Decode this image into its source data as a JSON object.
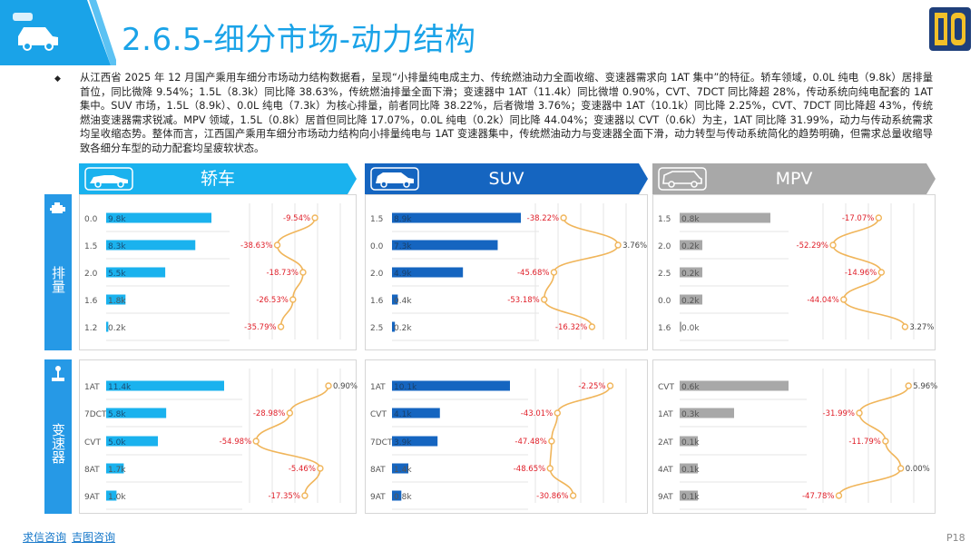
{
  "header": {
    "title": "2.6.5-细分市场-动力结构"
  },
  "summary": {
    "bullet": "◆",
    "text": "从江西省 2025 年 12 月国产乘用车细分市场动力结构数据看，呈现“小排量纯电成主力、传统燃油动力全面收缩、变速器需求向 1AT 集中”的特征。轿车领域，0.0L 纯电（9.8k）居排量首位，同比微降 9.54%；1.5L（8.3k）同比降 38.63%，传统燃油排量全面下滑；变速器中 1AT（11.4k）同比微增 0.90%，CVT、7DCT 同比降超 28%，传动系统向纯电配套的 1AT 集中。SUV 市场，1.5L（8.9k）、0.0L 纯电（7.3k）为核心排量，前者同比降 38.22%，后者微增 3.76%；变速器中 1AT（10.1k）同比降 2.25%，CVT、7DCT 同比降超 43%，传统燃油变速器需求锐减。MPV 领域，1.5L（0.8k）居首但同比降 17.07%，0.0L 纯电（0.2k）同比降 44.04%；变速器以 CVT（0.6k）为主，1AT 同比降 31.99%，动力与传动系统需求均呈收缩态势。整体而言，江西国产乘用车细分市场动力结构向小排量纯电与 1AT 变速器集中，传统燃油动力与变速器全面下滑，动力转型与传动系统简化的趋势明确，但需求总量收缩导致各细分车型的动力配套均呈疲软状态。"
  },
  "columns": [
    {
      "label": "轿车",
      "color": "#1ab2ee"
    },
    {
      "label": "SUV",
      "color": "#1565c0"
    },
    {
      "label": "MPV",
      "color": "#a8a8a8"
    }
  ],
  "rows": [
    {
      "label": "排量",
      "icon": "engine-icon"
    },
    {
      "label": "变速器",
      "icon": "gear-shift-icon"
    }
  ],
  "footer": {
    "link1": "求信咨询",
    "link2": "吉图咨询",
    "page": "P18"
  },
  "chart_data": [
    {
      "type": "bar",
      "segment": "轿车",
      "dimension": "排量",
      "categories": [
        "0.0",
        "1.5",
        "2.0",
        "1.6",
        "1.2"
      ],
      "values": [
        9.8,
        8.3,
        5.5,
        1.8,
        0.2
      ],
      "value_labels": [
        "9.8k",
        "8.3k",
        "5.5k",
        "1.8k",
        "0.2k"
      ],
      "growth": [
        -9.54,
        -38.63,
        -18.73,
        -26.53,
        -35.79
      ],
      "growth_labels": [
        "-9.54%",
        "-38.63%",
        "-18.73%",
        "-26.53%",
        "-35.79%"
      ]
    },
    {
      "type": "bar",
      "segment": "SUV",
      "dimension": "排量",
      "categories": [
        "1.5",
        "0.0",
        "2.0",
        "1.6",
        "2.5"
      ],
      "values": [
        8.9,
        7.3,
        4.9,
        0.4,
        0.2
      ],
      "value_labels": [
        "8.9k",
        "7.3k",
        "4.9k",
        "0.4k",
        "0.2k"
      ],
      "growth": [
        -38.22,
        3.76,
        -45.68,
        -53.18,
        -16.32
      ],
      "growth_labels": [
        "-38.22%",
        "3.76%",
        "-45.68%",
        "-53.18%",
        "-16.32%"
      ]
    },
    {
      "type": "bar",
      "segment": "MPV",
      "dimension": "排量",
      "categories": [
        "1.5",
        "2.0",
        "2.5",
        "0.0",
        "1.6"
      ],
      "values": [
        0.8,
        0.2,
        0.2,
        0.2,
        0.0
      ],
      "value_labels": [
        "0.8k",
        "0.2k",
        "0.2k",
        "0.2k",
        "0.0k"
      ],
      "growth": [
        -17.07,
        -52.29,
        -14.96,
        -44.04,
        3.27
      ],
      "growth_labels": [
        "-17.07%",
        "-52.29%",
        "-14.96%",
        "-44.04%",
        "3.27%"
      ]
    },
    {
      "type": "bar",
      "segment": "轿车",
      "dimension": "变速器",
      "categories": [
        "1AT",
        "7DCT",
        "CVT",
        "8AT",
        "9AT"
      ],
      "values": [
        11.4,
        5.8,
        5.0,
        1.7,
        1.0
      ],
      "value_labels": [
        "11.4k",
        "5.8k",
        "5.0k",
        "1.7k",
        "1.0k"
      ],
      "growth": [
        0.9,
        -28.98,
        -54.98,
        -5.46,
        -17.35
      ],
      "growth_labels": [
        "0.90%",
        "-28.98%",
        "-54.98%",
        "-5.46%",
        "-17.35%"
      ]
    },
    {
      "type": "bar",
      "segment": "SUV",
      "dimension": "变速器",
      "categories": [
        "1AT",
        "CVT",
        "7DCT",
        "8AT",
        "9AT"
      ],
      "values": [
        10.1,
        4.1,
        3.9,
        1.4,
        0.8
      ],
      "value_labels": [
        "10.1k",
        "4.1k",
        "3.9k",
        "1.4k",
        "0.8k"
      ],
      "growth": [
        -2.25,
        -43.01,
        -47.48,
        -48.65,
        -30.86
      ],
      "growth_labels": [
        "-2.25%",
        "-43.01%",
        "-47.48%",
        "-48.65%",
        "-30.86%"
      ]
    },
    {
      "type": "bar",
      "segment": "MPV",
      "dimension": "变速器",
      "categories": [
        "CVT",
        "1AT",
        "2AT",
        "4AT",
        "9AT"
      ],
      "values": [
        0.6,
        0.3,
        0.1,
        0.1,
        0.1
      ],
      "value_labels": [
        "0.6k",
        "0.3k",
        "0.1k",
        "0.1k",
        "0.1k"
      ],
      "growth": [
        5.96,
        -31.99,
        -11.79,
        0.0,
        -47.78
      ],
      "growth_labels": [
        "5.96%",
        "-31.99%",
        "-11.79%",
        "0.00%",
        "-47.78%"
      ]
    }
  ]
}
